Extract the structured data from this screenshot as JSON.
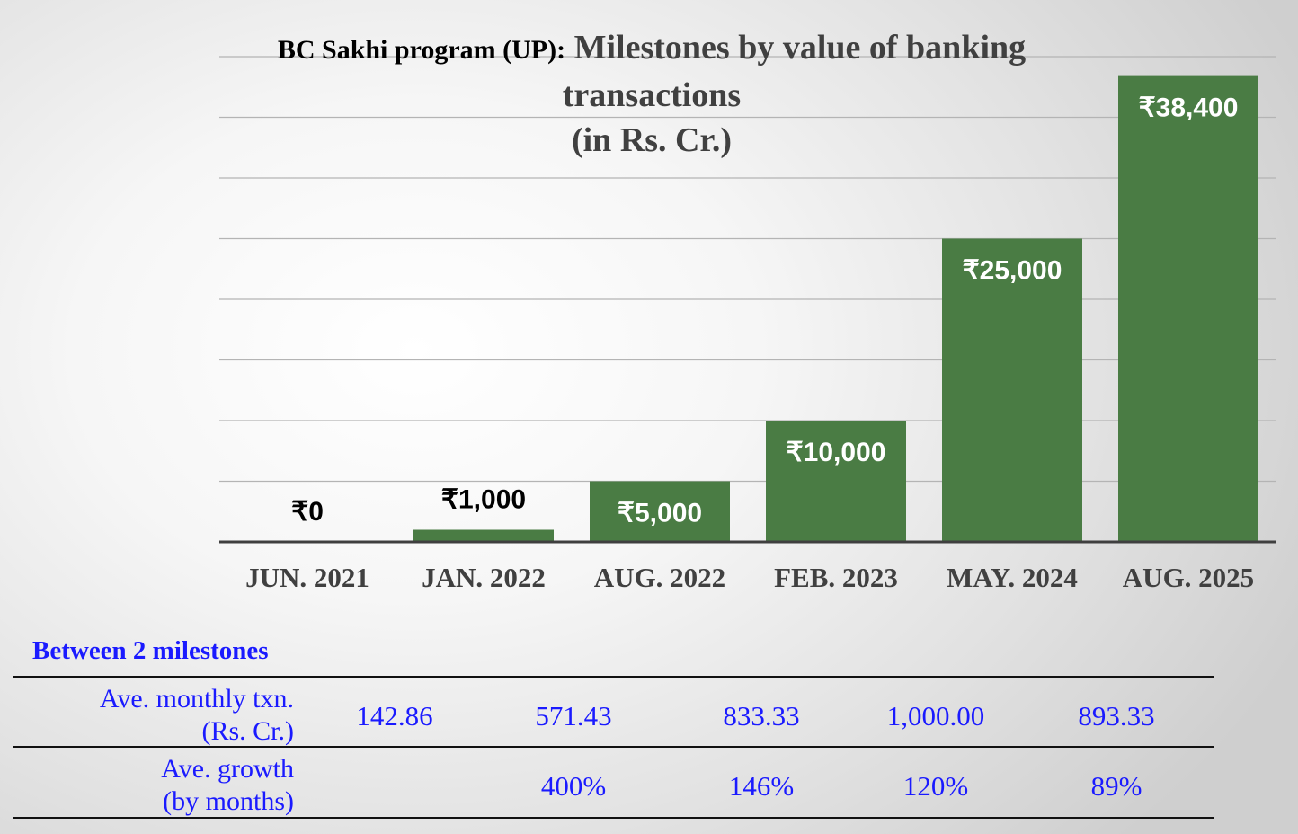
{
  "chart_data": {
    "type": "bar",
    "title_prefix": "BC Sakhi program (UP):",
    "title_lines": [
      "Milestones by value of banking",
      "transactions",
      "(in Rs. Cr.)"
    ],
    "categories": [
      "JUN. 2021",
      "JAN. 2022",
      "AUG. 2022",
      "FEB. 2023",
      "MAY. 2024",
      "AUG. 2025"
    ],
    "values": [
      0,
      1000,
      5000,
      10000,
      25000,
      38400
    ],
    "value_labels": [
      "₹0",
      "₹1,000",
      "₹5,000",
      "₹10,000",
      "₹25,000",
      "₹38,400"
    ],
    "ylim": [
      0,
      40000
    ],
    "grid": true,
    "colors": {
      "bar": "#4a7c44",
      "grid": "#b4b4b4",
      "axis": "#3f3f3f",
      "label_dark": "#000000",
      "label_light": "#ffffff",
      "category": "#404040"
    }
  },
  "stats": {
    "heading": "Between 2 milestones",
    "rows": [
      {
        "label_lines": [
          "Ave. monthly txn.",
          "(Rs. Cr.)"
        ],
        "values": [
          "142.86",
          "571.43",
          "833.33",
          "1,000.00",
          "893.33"
        ]
      },
      {
        "label_lines": [
          "Ave. growth",
          "(by months)"
        ],
        "values": [
          "",
          "400%",
          "146%",
          "120%",
          "89%"
        ]
      }
    ],
    "text_color": "#1a1aff"
  }
}
